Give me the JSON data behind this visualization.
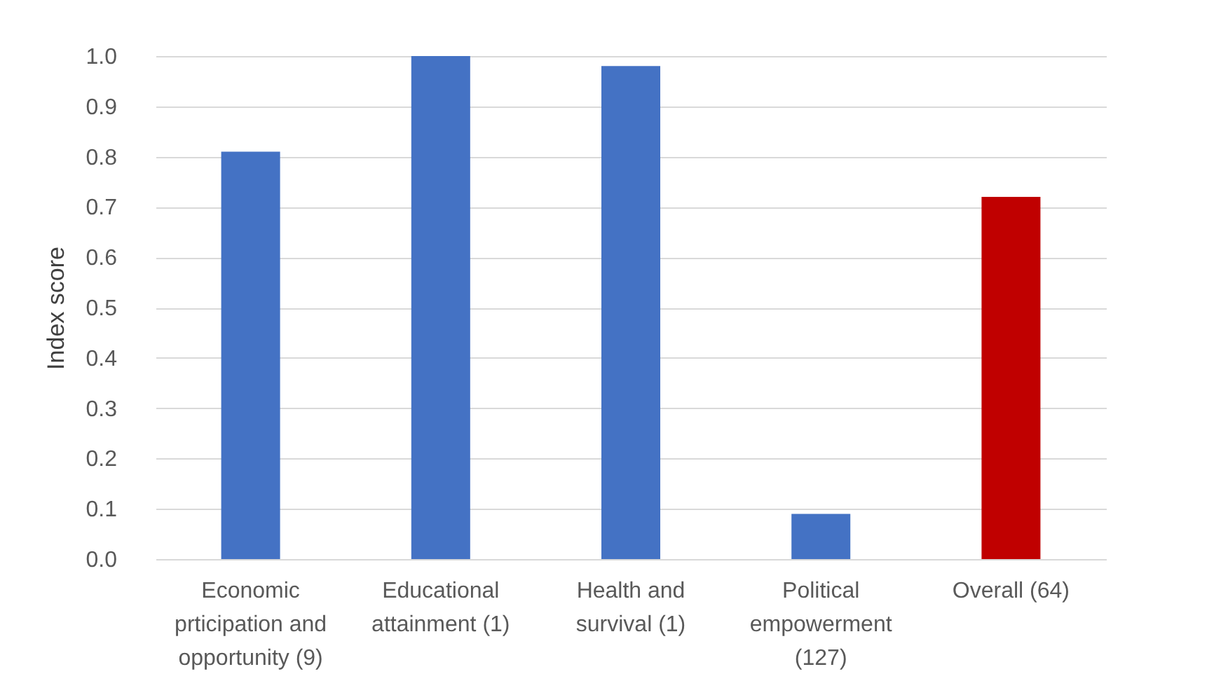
{
  "chart_data": {
    "type": "bar",
    "ylabel": "Index score",
    "categories": [
      "Economic prticipation and opportunity (9)",
      "Educational attainment (1)",
      "Health and survival (1)",
      "Political empowerment (127)",
      "Overall (64)"
    ],
    "values": [
      0.81,
      1.0,
      0.98,
      0.09,
      0.72
    ],
    "colors": [
      "#4472c4",
      "#4472c4",
      "#4472c4",
      "#4472c4",
      "#c00000"
    ],
    "ylim": [
      0,
      1.0
    ],
    "yticks": [
      {
        "value": 0,
        "label": "0.0"
      },
      {
        "value": 0.1,
        "label": "0.1"
      },
      {
        "value": 0.2,
        "label": "0.2"
      },
      {
        "value": 0.3,
        "label": "0.3"
      },
      {
        "value": 0.4,
        "label": "0.4"
      },
      {
        "value": 0.5,
        "label": "0.5"
      },
      {
        "value": 0.6,
        "label": "0.6"
      },
      {
        "value": 0.7,
        "label": "0.7"
      },
      {
        "value": 0.8,
        "label": "0.8"
      },
      {
        "value": 0.9,
        "label": "0.9"
      },
      {
        "value": 1.0,
        "label": "1.0"
      }
    ],
    "grid": "y"
  }
}
